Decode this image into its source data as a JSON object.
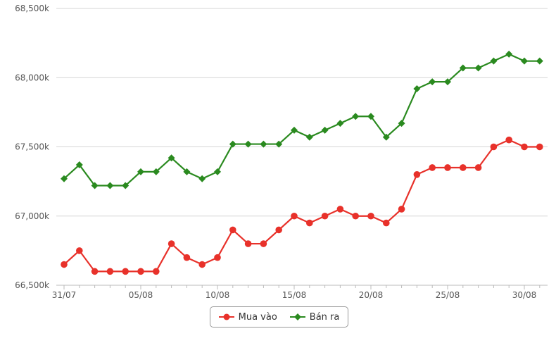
{
  "chart_data": {
    "type": "line",
    "x": [
      "31/07",
      "01/08",
      "02/08",
      "03/08",
      "04/08",
      "05/08",
      "06/08",
      "07/08",
      "08/08",
      "09/08",
      "10/08",
      "11/08",
      "12/08",
      "13/08",
      "14/08",
      "15/08",
      "16/08",
      "17/08",
      "18/08",
      "19/08",
      "20/08",
      "21/08",
      "22/08",
      "23/08",
      "24/08",
      "25/08",
      "26/08",
      "27/08",
      "28/08",
      "29/08",
      "30/08",
      "31/08"
    ],
    "x_tick_labels": [
      "31/07",
      "05/08",
      "10/08",
      "15/08",
      "20/08",
      "25/08",
      "30/08"
    ],
    "y_tick_labels": [
      "66,500k",
      "67,000k",
      "67,500k",
      "68,000k",
      "68,500k"
    ],
    "ylim": [
      66500,
      68500
    ],
    "series": [
      {
        "name": "Mua vào",
        "color": "#e8312a",
        "marker": "circle",
        "values": [
          66650,
          66750,
          66600,
          66600,
          66600,
          66600,
          66600,
          66800,
          66700,
          66650,
          66700,
          66900,
          66800,
          66800,
          66900,
          67000,
          66950,
          67000,
          67050,
          67000,
          67000,
          66950,
          67050,
          67300,
          67350,
          67350,
          67350,
          67350,
          67500,
          67550,
          67500,
          67500
        ]
      },
      {
        "name": "Bán ra",
        "color": "#2a8a1f",
        "marker": "diamond",
        "values": [
          67270,
          67370,
          67220,
          67220,
          67220,
          67320,
          67320,
          67420,
          67320,
          67270,
          67320,
          67520,
          67520,
          67520,
          67520,
          67620,
          67570,
          67620,
          67670,
          67720,
          67720,
          67570,
          67670,
          67920,
          67970,
          67970,
          68070,
          68070,
          68120,
          68170,
          68120,
          68120
        ]
      }
    ],
    "grid": true,
    "legend": "bottom-center"
  }
}
